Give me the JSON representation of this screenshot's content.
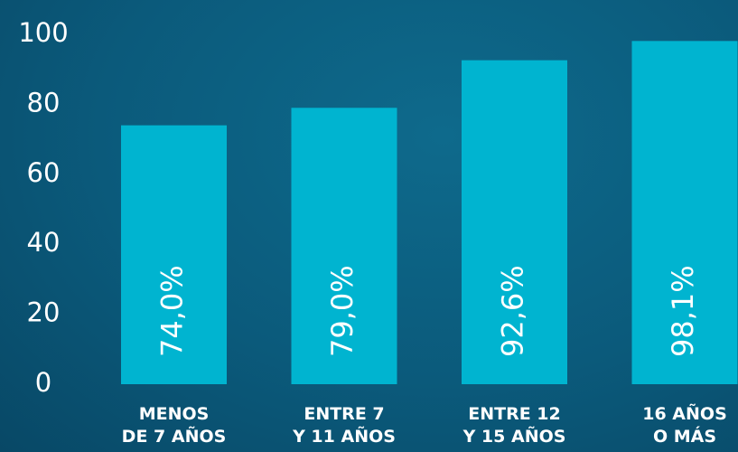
{
  "chart_data": {
    "type": "bar",
    "categories": [
      "MENOS\nDE 7 AÑOS",
      "ENTRE 7\nY 11 AÑOS",
      "ENTRE 12\nY 15 AÑOS",
      "16 AÑOS\nO MÁS"
    ],
    "values": [
      74.0,
      79.0,
      92.6,
      98.1
    ],
    "value_labels": [
      "74,0%",
      "79,0%",
      "92,6%",
      "98,1%"
    ],
    "color": "#00b4d0",
    "ylim": [
      0,
      100
    ],
    "yticks": [
      0,
      20,
      40,
      60,
      80,
      100
    ],
    "grid": false
  }
}
